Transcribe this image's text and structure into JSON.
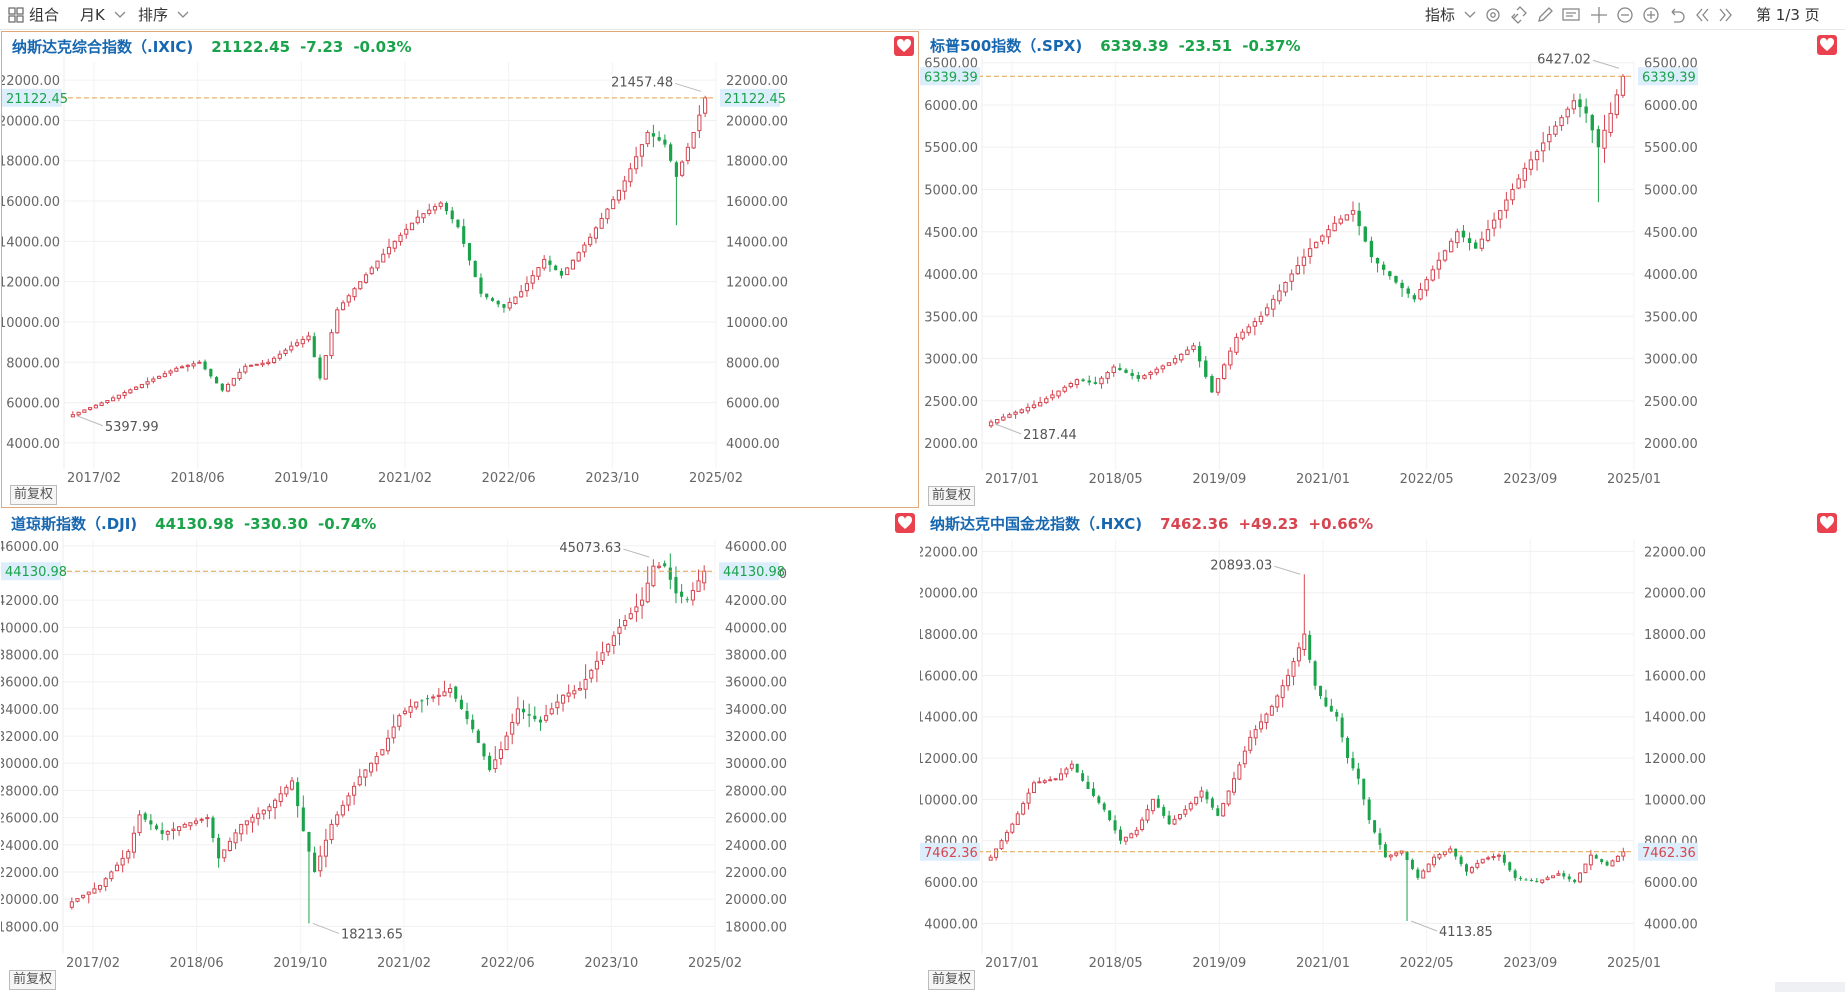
{
  "toolbar": {
    "combo_label": "组合",
    "period_label": "月K",
    "sort_label": "排序",
    "indicator_label": "指标",
    "page_label": "第 1/3 页",
    "icons": [
      "settings-icon",
      "link-icon",
      "draw-pen-icon",
      "annotate-icon",
      "crosshair-icon",
      "zoom-out-icon",
      "zoom-in-icon",
      "undo-icon",
      "prev-page-icon",
      "next-page-icon"
    ]
  },
  "colors": {
    "up": "#d64550",
    "down": "#1aa34a",
    "ref_line": "#e3a048",
    "name": "#1767b0",
    "price_tag": "#dceefb"
  },
  "panels": [
    {
      "id": "ixic",
      "name": "纳斯达克综合指数（.IXIC)",
      "price": "21122.45",
      "change": "-7.23",
      "pct": "-0.03%",
      "direction": "down",
      "adjust_label": "前复权",
      "chart_data": {
        "type": "candlestick",
        "x_ticks": [
          "2017/02",
          "2018/06",
          "2019/10",
          "2021/02",
          "2022/06",
          "2023/10",
          "2025/02"
        ],
        "y_ticks": [
          "4000.00",
          "6000.00",
          "8000.00",
          "10000.00",
          "12000.00",
          "14000.00",
          "16000.00",
          "18000.00",
          "20000.00",
          "22000.00"
        ],
        "ylim": [
          3200,
          22900
        ],
        "current_value": 21122.45,
        "current_label": "21122.45",
        "high_label": "21457.48",
        "low_label": "5397.99",
        "anchors": [
          [
            0,
            5400
          ],
          [
            6,
            6100
          ],
          [
            12,
            6900
          ],
          [
            18,
            7700
          ],
          [
            22,
            8000
          ],
          [
            26,
            6600
          ],
          [
            30,
            7800
          ],
          [
            34,
            8000
          ],
          [
            38,
            8800
          ],
          [
            41,
            9300
          ],
          [
            43,
            7200
          ],
          [
            46,
            10600
          ],
          [
            50,
            12000
          ],
          [
            55,
            13700
          ],
          [
            60,
            15200
          ],
          [
            64,
            15900
          ],
          [
            67,
            14700
          ],
          [
            71,
            11400
          ],
          [
            75,
            10700
          ],
          [
            78,
            11500
          ],
          [
            82,
            13100
          ],
          [
            85,
            12300
          ],
          [
            90,
            14200
          ],
          [
            93,
            15600
          ],
          [
            96,
            17000
          ],
          [
            100,
            19400
          ],
          [
            103,
            18800
          ],
          [
            105,
            17200
          ],
          [
            108,
            19400
          ],
          [
            110,
            21122
          ]
        ],
        "shock": {
          "index": 105,
          "low": 14800
        }
      }
    },
    {
      "id": "spx",
      "name": "标普500指数（.SPX)",
      "price": "6339.39",
      "change": "-23.51",
      "pct": "-0.37%",
      "direction": "down",
      "adjust_label": "前复权",
      "chart_data": {
        "type": "candlestick",
        "x_ticks": [
          "2017/01",
          "2018/05",
          "2019/09",
          "2021/01",
          "2022/05",
          "2023/09",
          "2025/01"
        ],
        "y_ticks": [
          "2000.00",
          "2500.00",
          "3000.00",
          "3500.00",
          "4000.00",
          "4500.00",
          "5000.00",
          "5500.00",
          "6000.00",
          "6500.00"
        ],
        "ylim": [
          1800,
          6520
        ],
        "current_value": 6339.39,
        "current_label": "6339.39",
        "high_label": "6427.02",
        "low_label": "2187.44",
        "anchors": [
          [
            0,
            2250
          ],
          [
            8,
            2480
          ],
          [
            14,
            2750
          ],
          [
            17,
            2700
          ],
          [
            20,
            2900
          ],
          [
            24,
            2760
          ],
          [
            29,
            2950
          ],
          [
            33,
            3150
          ],
          [
            36,
            2600
          ],
          [
            40,
            3250
          ],
          [
            44,
            3500
          ],
          [
            48,
            3900
          ],
          [
            52,
            4300
          ],
          [
            56,
            4600
          ],
          [
            59,
            4750
          ],
          [
            62,
            4200
          ],
          [
            66,
            3900
          ],
          [
            69,
            3700
          ],
          [
            72,
            4050
          ],
          [
            76,
            4500
          ],
          [
            79,
            4300
          ],
          [
            83,
            4750
          ],
          [
            87,
            5250
          ],
          [
            91,
            5650
          ],
          [
            95,
            6050
          ],
          [
            97,
            5900
          ],
          [
            99,
            5500
          ],
          [
            101,
            5900
          ],
          [
            103,
            6339
          ]
        ],
        "shock": {
          "index": 99,
          "low": 4850
        }
      }
    },
    {
      "id": "dji",
      "name": "道琼斯指数（.DJI)",
      "price": "44130.98",
      "change": "-330.30",
      "pct": "-0.74%",
      "direction": "down",
      "adjust_label": "前复权",
      "chart_data": {
        "type": "candlestick",
        "x_ticks": [
          "2017/02",
          "2018/06",
          "2019/10",
          "2021/02",
          "2022/06",
          "2023/10",
          "2025/02"
        ],
        "y_ticks": [
          "18000.00",
          "20000.00",
          "22000.00",
          "24000.00",
          "26000.00",
          "28000.00",
          "30000.00",
          "32000.00",
          "34000.00",
          "36000.00",
          "38000.00",
          "40000.00",
          "42000.00",
          "44000.00",
          "46000.00"
        ],
        "ylim": [
          16700,
          46500
        ],
        "current_value": 44130.98,
        "current_label": "44130.98",
        "high_label": "45073.63",
        "low_label": "18213.65",
        "anchors": [
          [
            0,
            19800
          ],
          [
            5,
            21000
          ],
          [
            10,
            23500
          ],
          [
            12,
            26200
          ],
          [
            16,
            24800
          ],
          [
            20,
            25500
          ],
          [
            24,
            26000
          ],
          [
            26,
            23000
          ],
          [
            30,
            25500
          ],
          [
            35,
            26800
          ],
          [
            39,
            28700
          ],
          [
            41,
            25000
          ],
          [
            43,
            22000
          ],
          [
            46,
            25500
          ],
          [
            51,
            29000
          ],
          [
            55,
            31000
          ],
          [
            58,
            33500
          ],
          [
            61,
            34500
          ],
          [
            65,
            35000
          ],
          [
            67,
            35500
          ],
          [
            71,
            32500
          ],
          [
            74,
            29500
          ],
          [
            76,
            31000
          ],
          [
            79,
            34000
          ],
          [
            83,
            33000
          ],
          [
            87,
            35000
          ],
          [
            90,
            35500
          ],
          [
            93,
            37500
          ],
          [
            97,
            40000
          ],
          [
            101,
            42000
          ],
          [
            103,
            44500
          ],
          [
            105,
            44500
          ],
          [
            107,
            42500
          ],
          [
            109,
            42000
          ],
          [
            112,
            44130
          ]
        ],
        "shock": {
          "index": 42,
          "low": 18213
        }
      }
    },
    {
      "id": "hxc",
      "name": "纳斯达克中国金龙指数（.HXC)",
      "price": "7462.36",
      "change": "+49.23",
      "pct": "+0.66%",
      "direction": "up",
      "adjust_label": "前复权",
      "chart_data": {
        "type": "candlestick",
        "x_ticks": [
          "2017/01",
          "2018/05",
          "2019/09",
          "2021/01",
          "2022/05",
          "2023/09",
          "2025/01"
        ],
        "y_ticks": [
          "4000.00",
          "6000.00",
          "8000.00",
          "10000.00",
          "12000.00",
          "14000.00",
          "16000.00",
          "18000.00",
          "20000.00",
          "22000.00"
        ],
        "ylim": [
          3000,
          22600
        ],
        "current_value": 7462.36,
        "current_label": "7462.36",
        "high_label": "20893.03",
        "low_label": "4113.85",
        "anchors": [
          [
            0,
            7200
          ],
          [
            4,
            8800
          ],
          [
            8,
            10800
          ],
          [
            12,
            11000
          ],
          [
            15,
            11700
          ],
          [
            18,
            10500
          ],
          [
            21,
            9500
          ],
          [
            24,
            8000
          ],
          [
            27,
            8500
          ],
          [
            30,
            10000
          ],
          [
            33,
            8800
          ],
          [
            36,
            9500
          ],
          [
            39,
            10400
          ],
          [
            42,
            9200
          ],
          [
            45,
            11000
          ],
          [
            48,
            13000
          ],
          [
            52,
            14500
          ],
          [
            55,
            16000
          ],
          [
            58,
            18000
          ],
          [
            60,
            15500
          ],
          [
            62,
            14500
          ],
          [
            64,
            14000
          ],
          [
            66,
            12000
          ],
          [
            68,
            11000
          ],
          [
            70,
            9000
          ],
          [
            73,
            7200
          ],
          [
            76,
            7500
          ],
          [
            79,
            6200
          ],
          [
            82,
            7200
          ],
          [
            85,
            7600
          ],
          [
            88,
            6500
          ],
          [
            91,
            7100
          ],
          [
            94,
            7300
          ],
          [
            97,
            6200
          ],
          [
            101,
            6000
          ],
          [
            105,
            6400
          ],
          [
            108,
            6000
          ],
          [
            111,
            7300
          ],
          [
            114,
            6800
          ],
          [
            117,
            7462
          ]
        ],
        "shock": {
          "index": 77,
          "low": 4113
        },
        "spike": {
          "index": 58,
          "high": 20893
        }
      }
    }
  ]
}
